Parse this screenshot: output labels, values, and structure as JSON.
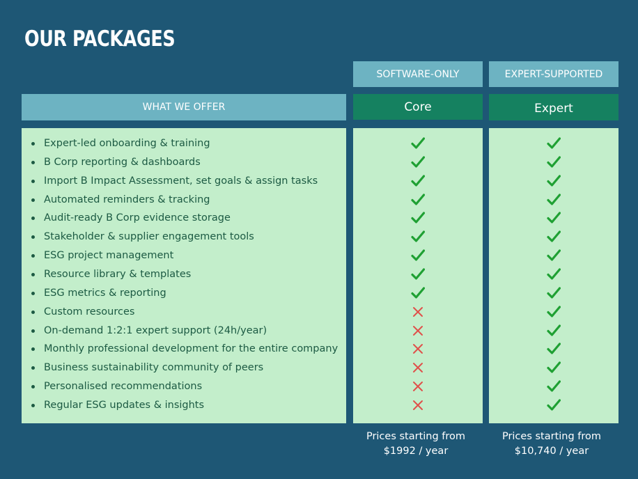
{
  "title": "OUR PACKAGES",
  "offer_header": "WHAT WE OFFER",
  "packages": [
    {
      "tier": "SOFTWARE-ONLY",
      "name": "Core",
      "price_line1": "Prices starting from",
      "price_line2": "$1992 / year",
      "included": [
        true,
        true,
        true,
        true,
        true,
        true,
        true,
        true,
        true,
        false,
        false,
        false,
        false,
        false,
        false
      ]
    },
    {
      "tier": "EXPERT-SUPPORTED",
      "name": "Expert",
      "price_line1": "Prices starting from",
      "price_line2": "$10,740 / year",
      "included": [
        true,
        true,
        true,
        true,
        true,
        true,
        true,
        true,
        true,
        true,
        true,
        true,
        true,
        true,
        true
      ]
    }
  ],
  "features": [
    "Expert-led onboarding & training",
    "B Corp reporting & dashboards",
    "Import B Impact Assessment, set goals & assign tasks",
    "Automated reminders & tracking",
    "Audit-ready B Corp evidence storage",
    "Stakeholder & supplier engagement tools",
    "ESG project management",
    "Resource library & templates",
    "ESG metrics & reporting",
    "Custom resources",
    "On-demand 1:2:1 expert support (24h/year)",
    "Monthly professional development for the entire company",
    "Business sustainability community of peers",
    "Personalised recommendations",
    "Regular ESG updates & insights"
  ],
  "icons": {
    "included": "check-icon",
    "excluded": "cross-icon"
  },
  "colors": {
    "background": "#1e5775",
    "header": "#6db3c2",
    "plan": "#158160",
    "panel": "#c3eecb",
    "check": "#1fa033",
    "cross": "#e0504a"
  }
}
